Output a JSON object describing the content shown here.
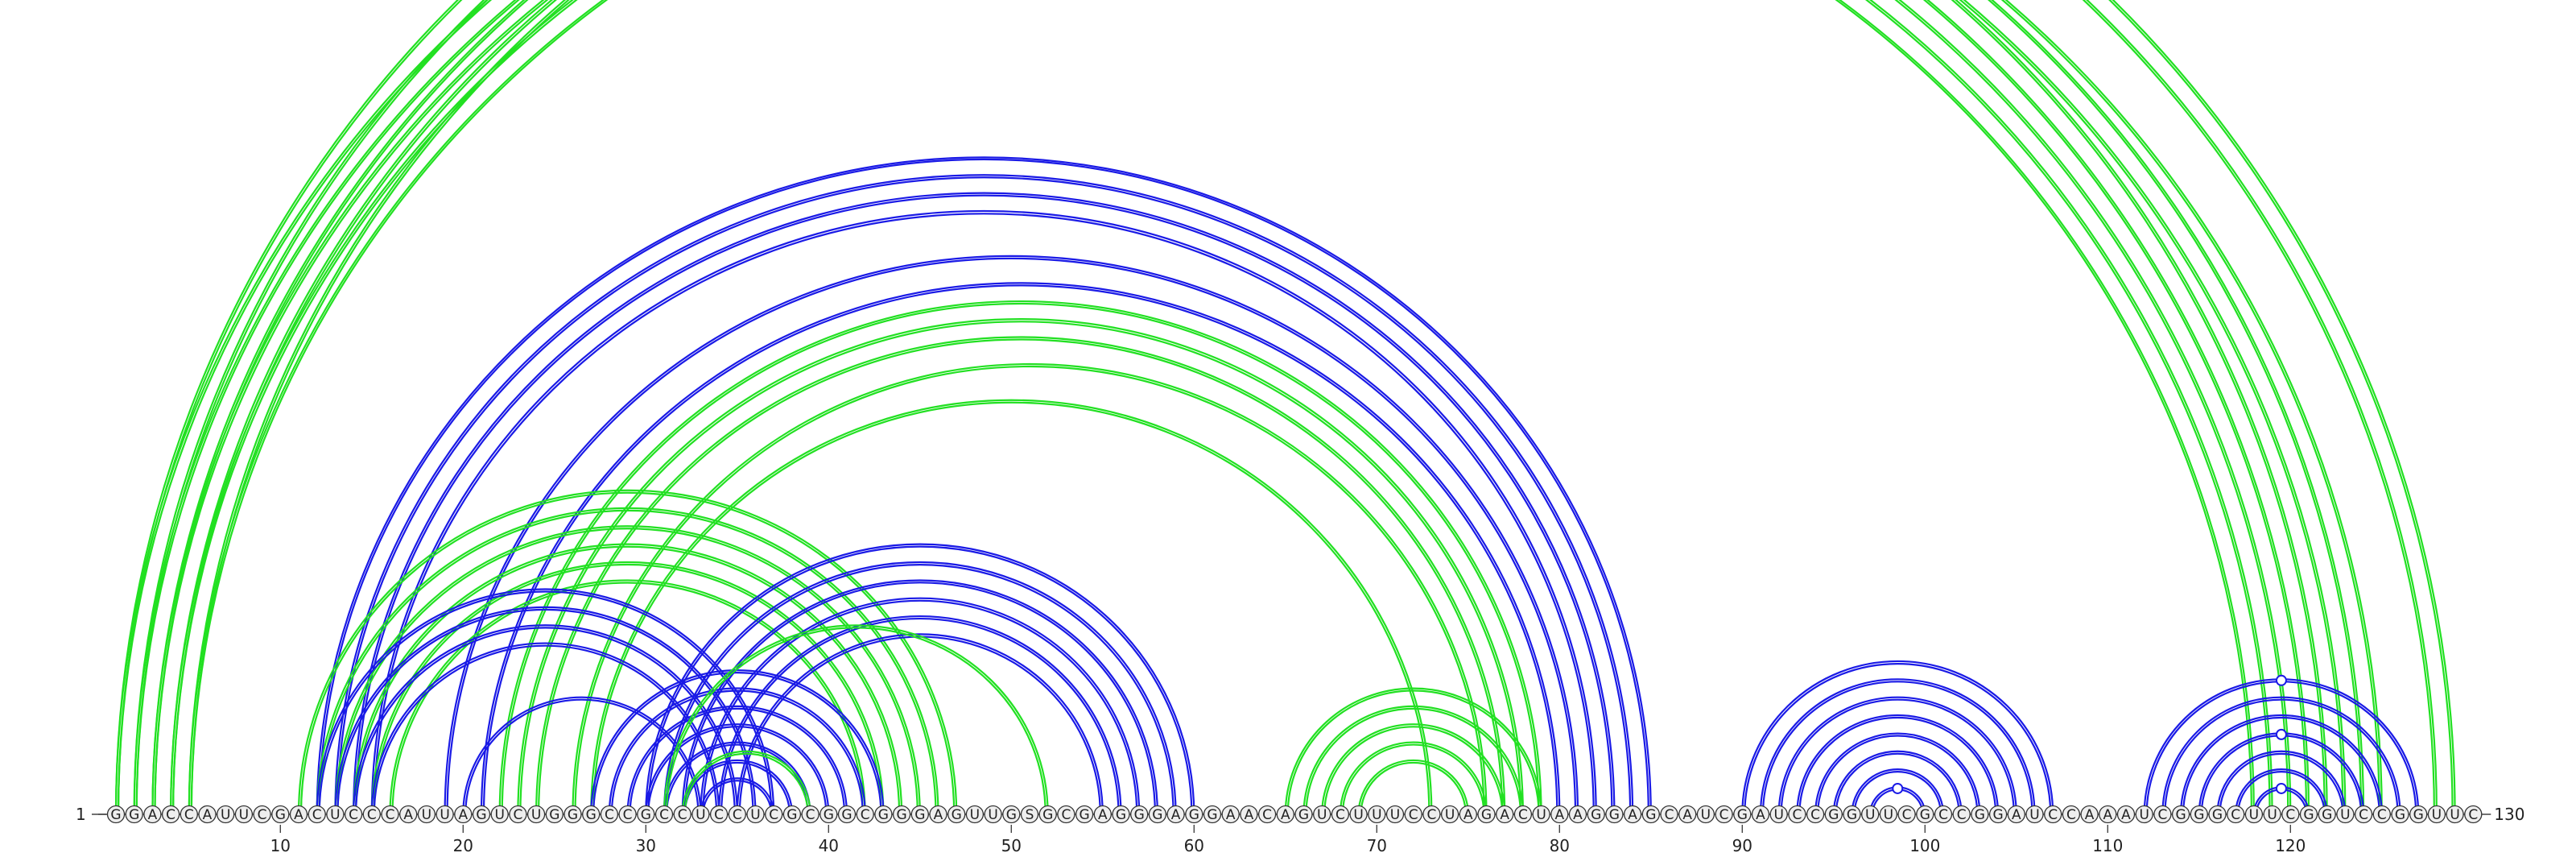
{
  "diagram": {
    "type": "rna-arc-diagram",
    "sequence": "GGACCAUUCGACUCCCAUUAGUCUGGGCCGCCUCCUCGCGGCGGGAGUUGSGCGAGGGAGGAACAGUCUUUCCUAGACUAAGGAGCAUCGAUCCGGUUCGCCGGAUCCAAAUCGGGCUUCGGUCCGGUUC",
    "length": 130,
    "start_label": "1",
    "end_label": "130",
    "tick_labels": [
      "10",
      "20",
      "30",
      "40",
      "50",
      "60",
      "70",
      "80",
      "90",
      "100",
      "110",
      "120"
    ],
    "tick_positions": [
      10,
      20,
      30,
      40,
      50,
      60,
      70,
      80,
      90,
      100,
      110,
      120
    ],
    "colors": {
      "blue": "#1a1ae6",
      "green": "#22e022",
      "marker": "#ffffff"
    },
    "arc_groups": [
      {
        "name": "outer-green-helix",
        "color": "green",
        "pairs": [
          [
            1,
            122
          ],
          [
            2,
            121
          ],
          [
            3,
            120
          ],
          [
            4,
            119
          ],
          [
            5,
            118
          ]
        ],
        "double": true
      },
      {
        "name": "outer-green-long",
        "color": "green",
        "pairs": [
          [
            1,
            129
          ],
          [
            2,
            128
          ]
        ],
        "double": true,
        "marker": "top"
      },
      {
        "name": "outer-green-mid",
        "color": "green",
        "pairs": [
          [
            3,
            124
          ],
          [
            4,
            123
          ],
          [
            5,
            125
          ]
        ],
        "double": true
      },
      {
        "name": "blue-big",
        "color": "blue",
        "pairs": [
          [
            12,
            85
          ],
          [
            13,
            84
          ],
          [
            14,
            83
          ],
          [
            15,
            82
          ],
          [
            19,
            81
          ],
          [
            21,
            80
          ]
        ],
        "double": true
      },
      {
        "name": "green-big",
        "color": "green",
        "pairs": [
          [
            22,
            79
          ],
          [
            23,
            78
          ],
          [
            24,
            77
          ],
          [
            26,
            76
          ]
        ],
        "double": true
      },
      {
        "name": "green-big-inner",
        "color": "green",
        "pairs": [
          [
            27,
            73
          ]
        ],
        "double": true
      },
      {
        "name": "green-left",
        "color": "green",
        "pairs": [
          [
            11,
            47
          ],
          [
            12,
            46
          ],
          [
            13,
            45
          ],
          [
            14,
            44
          ],
          [
            15,
            43
          ],
          [
            16,
            42
          ]
        ],
        "double": true
      },
      {
        "name": "blue-left",
        "color": "blue",
        "pairs": [
          [
            12,
            37
          ],
          [
            13,
            36
          ],
          [
            14,
            35
          ],
          [
            15,
            34
          ],
          [
            20,
            33
          ]
        ],
        "double": true
      },
      {
        "name": "blue-mid",
        "color": "blue",
        "pairs": [
          [
            30,
            60
          ],
          [
            31,
            59
          ],
          [
            32,
            58
          ],
          [
            33,
            57
          ],
          [
            34,
            56
          ],
          [
            35,
            55
          ]
        ],
        "double": true
      },
      {
        "name": "blue-dense",
        "color": "blue",
        "pairs": [
          [
            27,
            43
          ],
          [
            28,
            42
          ],
          [
            29,
            41
          ],
          [
            30,
            40
          ],
          [
            31,
            39
          ],
          [
            32,
            38
          ],
          [
            33,
            37
          ]
        ],
        "double": true
      },
      {
        "name": "green-small",
        "color": "green",
        "pairs": [
          [
            31,
            52
          ],
          [
            32,
            39
          ]
        ],
        "double": true
      },
      {
        "name": "green-hairpin-70",
        "color": "green",
        "pairs": [
          [
            65,
            79
          ],
          [
            66,
            78
          ],
          [
            67,
            77
          ],
          [
            68,
            76
          ],
          [
            69,
            75
          ]
        ],
        "double": true
      },
      {
        "name": "blue-hairpin-97",
        "color": "blue",
        "pairs": [
          [
            90,
            107
          ],
          [
            91,
            106
          ],
          [
            92,
            105
          ],
          [
            93,
            104
          ],
          [
            94,
            103
          ],
          [
            95,
            102
          ],
          [
            96,
            101
          ],
          [
            97,
            100
          ]
        ],
        "double": true,
        "marker": "innermost"
      },
      {
        "name": "blue-hairpin-118",
        "color": "blue",
        "pairs": [
          [
            112,
            127
          ],
          [
            113,
            126
          ],
          [
            114,
            125
          ],
          [
            115,
            124
          ],
          [
            116,
            123
          ],
          [
            117,
            122
          ],
          [
            118,
            121
          ]
        ],
        "double": true,
        "marker": "three"
      }
    ]
  }
}
